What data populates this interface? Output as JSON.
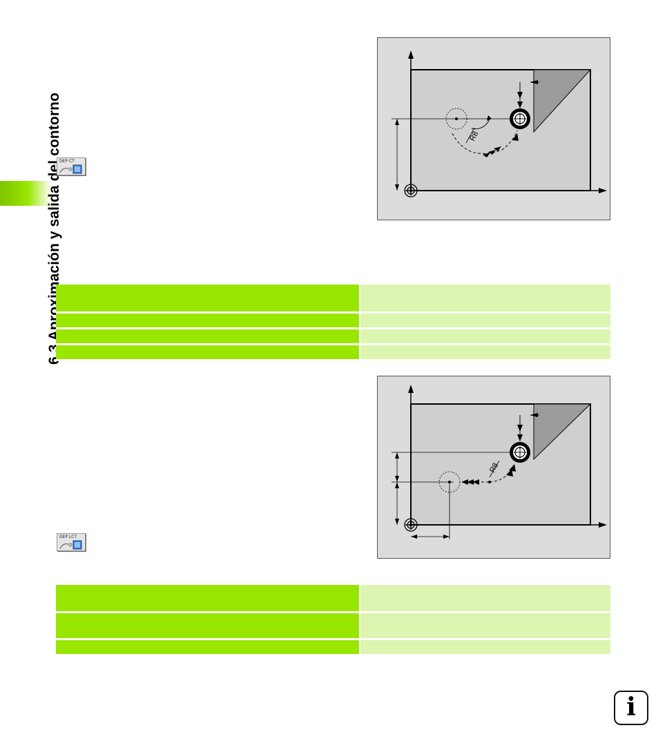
{
  "page": {
    "side_title": "6.3 Aproximación y salida del contorno"
  },
  "softkeys": {
    "dep_ct": {
      "label": "DEP CT",
      "icon": "dep-ct-softkey-icon"
    },
    "dep_lct": {
      "label": "DEP LCT",
      "icon": "dep-lct-softkey-icon"
    }
  },
  "figures": {
    "figure1": {
      "radius_label": "R8"
    },
    "figure2": {
      "radius_label": "R8"
    }
  },
  "tables": {
    "table1": {
      "rows": [
        {
          "heights": "normal"
        },
        {},
        {},
        {}
      ]
    },
    "table2": {
      "rows": [
        {},
        {},
        {}
      ]
    }
  },
  "info": {
    "glyph": "i",
    "icon": "info-icon"
  },
  "colors": {
    "accent_green": "#99e600",
    "light_green": "#dcf5b0",
    "diagram_bg": "#dcdcdc",
    "workpiece": "#cfcfcf",
    "chamfer": "#9c9c9c"
  }
}
